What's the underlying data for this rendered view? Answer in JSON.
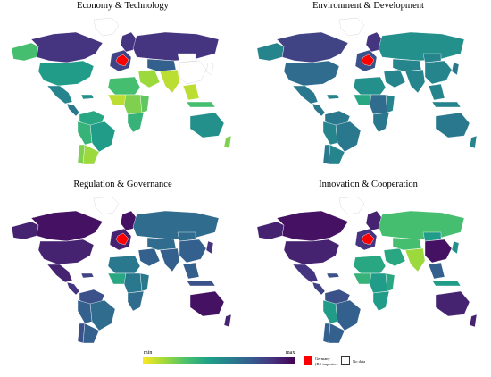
{
  "panels": [
    {
      "id": "econ",
      "title": "Economy & Technology",
      "values": {
        "canada": 0.85,
        "alaska": 0.3,
        "usa": 0.45,
        "mexico": 0.55,
        "central_america": 0.6,
        "caribbean": 0.5,
        "n_south_america": 0.4,
        "brazil": 0.45,
        "peru_bolivia": 0.35,
        "chile": 0.2,
        "argentina": 0.15,
        "greenland": null,
        "scandinavia": 0.85,
        "russia": 0.85,
        "europe": 0.8,
        "north_africa": 0.3,
        "west_africa": 0.1,
        "central_africa": 0.2,
        "east_africa": 0.25,
        "southern_africa": 0.35,
        "middle_east": 0.15,
        "central_asia": 0.7,
        "south_asia": 0.1,
        "china": null,
        "mongolia": null,
        "japan": null,
        "se_asia": 0.1,
        "indonesia": 0.3,
        "australia": 0.5,
        "new_zealand": 0.2
      }
    },
    {
      "id": "env",
      "title": "Environment & Development",
      "values": {
        "canada": 0.8,
        "alaska": 0.55,
        "usa": 0.65,
        "mexico": 0.6,
        "central_america": 0.6,
        "caribbean": 0.55,
        "n_south_america": 0.6,
        "brazil": 0.6,
        "peru_bolivia": 0.55,
        "chile": 0.6,
        "argentina": 0.55,
        "greenland": null,
        "scandinavia": 0.85,
        "russia": 0.5,
        "europe": 0.75,
        "north_africa": 0.5,
        "west_africa": 0.4,
        "central_africa": 0.65,
        "east_africa": 0.55,
        "southern_africa": 0.6,
        "middle_east": 0.55,
        "central_asia": 0.55,
        "south_asia": 0.55,
        "china": 0.55,
        "mongolia": 0.55,
        "japan": 0.6,
        "se_asia": 0.55,
        "indonesia": 0.55,
        "australia": 0.6,
        "new_zealand": 0.55
      }
    },
    {
      "id": "reg",
      "title": "Regulation & Governance",
      "values": {
        "canada": 0.95,
        "alaska": 0.9,
        "usa": 0.9,
        "mexico": 0.9,
        "central_america": 0.85,
        "caribbean": 0.8,
        "n_south_america": 0.75,
        "brazil": 0.65,
        "peru_bolivia": 0.7,
        "chile": 0.75,
        "argentina": 0.7,
        "greenland": null,
        "scandinavia": 0.95,
        "russia": 0.65,
        "europe": 0.9,
        "north_africa": 0.6,
        "west_africa": 0.4,
        "central_africa": 0.6,
        "east_africa": 0.6,
        "southern_africa": 0.65,
        "middle_east": 0.7,
        "central_asia": 0.65,
        "south_asia": 0.7,
        "china": 0.7,
        "mongolia": 0.65,
        "japan": 0.85,
        "se_asia": 0.7,
        "indonesia": 0.75,
        "australia": 0.95,
        "new_zealand": 0.9
      }
    },
    {
      "id": "innov",
      "title": "Innovation & Cooperation",
      "values": {
        "canada": 0.95,
        "alaska": 0.9,
        "usa": 0.9,
        "mexico": 0.85,
        "central_america": 0.8,
        "caribbean": 0.75,
        "n_south_america": 0.75,
        "brazil": 0.7,
        "peru_bolivia": 0.45,
        "chile": 0.7,
        "argentina": 0.7,
        "greenland": null,
        "scandinavia": 0.9,
        "russia": 0.3,
        "europe": 0.85,
        "north_africa": 0.4,
        "west_africa": 0.35,
        "central_africa": 0.45,
        "east_africa": 0.4,
        "southern_africa": 0.45,
        "middle_east": 0.4,
        "central_asia": 0.3,
        "south_asia": 0.15,
        "china": 0.95,
        "mongolia": 0.45,
        "japan": 0.5,
        "se_asia": 0.7,
        "indonesia": 0.45,
        "australia": 0.9,
        "new_zealand": 0.9
      }
    }
  ],
  "highlight": {
    "region": "germany",
    "color": "#ff0000"
  },
  "colorscale": [
    "#fde725",
    "#a0da39",
    "#4ac16d",
    "#1fa187",
    "#277f8e",
    "#365c8d",
    "#46327e",
    "#440154"
  ],
  "legend": {
    "min_label": "min",
    "max_label": "max",
    "germany_line1": "Germany",
    "germany_line2": "(RE importer)",
    "nodata_label": "No data"
  }
}
